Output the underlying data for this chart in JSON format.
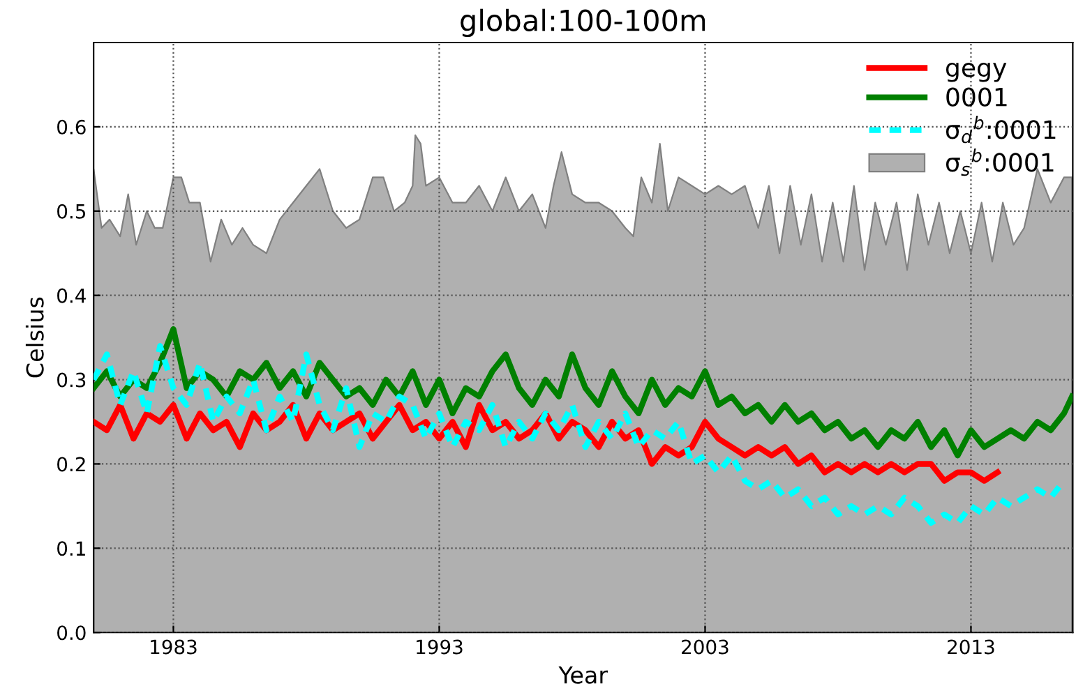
{
  "chart_data": {
    "type": "line",
    "title": "global:100-100m",
    "xlabel": "Year",
    "ylabel": "Celsius",
    "xlim": [
      1980,
      2016.83
    ],
    "xticks": [
      1983,
      1993,
      2003,
      2013
    ],
    "ylim": [
      0,
      0.7
    ],
    "yticks": [
      {
        "value": 0,
        "label": "0.0"
      },
      0.1,
      0.2,
      0.3,
      0.4,
      0.5,
      0.6
    ],
    "grid": true,
    "legend": "top right",
    "series": [
      {
        "name": "gegy",
        "color": "#ff0000",
        "line_style": "solid",
        "x": [
          1980,
          1980.5,
          1981,
          1981.5,
          1982,
          1982.5,
          1983,
          1983.5,
          1984,
          1984.5,
          1985,
          1985.5,
          1986,
          1986.5,
          1987,
          1987.5,
          1988,
          1988.5,
          1989,
          1989.5,
          1990,
          1990.5,
          1991,
          1991.5,
          1992,
          1992.5,
          1993,
          1993.5,
          1994,
          1994.5,
          1995,
          1995.5,
          1996,
          1996.5,
          1997,
          1997.5,
          1998,
          1998.5,
          1999,
          1999.5,
          2000,
          2000.5,
          2001,
          2001.5,
          2002,
          2002.5,
          2003,
          2003.5,
          2004,
          2004.5,
          2005,
          2005.5,
          2006,
          2006.5,
          2007,
          2007.5,
          2008,
          2008.5,
          2009,
          2009.5,
          2010,
          2010.5,
          2011,
          2011.5,
          2012,
          2012.5,
          2013,
          2013.5,
          2014
        ],
        "values": [
          0.25,
          0.24,
          0.27,
          0.23,
          0.26,
          0.25,
          0.27,
          0.23,
          0.26,
          0.24,
          0.25,
          0.22,
          0.26,
          0.24,
          0.25,
          0.27,
          0.23,
          0.26,
          0.24,
          0.25,
          0.26,
          0.23,
          0.25,
          0.27,
          0.24,
          0.25,
          0.23,
          0.25,
          0.22,
          0.27,
          0.24,
          0.25,
          0.23,
          0.24,
          0.26,
          0.23,
          0.25,
          0.24,
          0.22,
          0.25,
          0.23,
          0.24,
          0.2,
          0.22,
          0.21,
          0.22,
          0.25,
          0.23,
          0.22,
          0.21,
          0.22,
          0.21,
          0.22,
          0.2,
          0.21,
          0.19,
          0.2,
          0.19,
          0.2,
          0.19,
          0.2,
          0.19,
          0.2,
          0.2,
          0.18,
          0.19,
          0.19,
          0.18,
          0.19
        ]
      },
      {
        "name": "0001",
        "color": "#008000",
        "line_style": "solid",
        "x": [
          1980,
          1980.5,
          1981,
          1981.5,
          1982,
          1982.5,
          1983,
          1983.5,
          1984,
          1984.5,
          1985,
          1985.5,
          1986,
          1986.5,
          1987,
          1987.5,
          1988,
          1988.5,
          1989,
          1989.5,
          1990,
          1990.5,
          1991,
          1991.5,
          1992,
          1992.5,
          1993,
          1993.5,
          1994,
          1994.5,
          1995,
          1995.5,
          1996,
          1996.5,
          1997,
          1997.5,
          1998,
          1998.5,
          1999,
          1999.5,
          2000,
          2000.5,
          2001,
          2001.5,
          2002,
          2002.5,
          2003,
          2003.5,
          2004,
          2004.5,
          2005,
          2005.5,
          2006,
          2006.5,
          2007,
          2007.5,
          2008,
          2008.5,
          2009,
          2009.5,
          2010,
          2010.5,
          2011,
          2011.5,
          2012,
          2012.5,
          2013,
          2013.5,
          2014,
          2014.5,
          2015,
          2015.5,
          2016,
          2016.5,
          2016.8
        ],
        "values": [
          0.29,
          0.31,
          0.28,
          0.3,
          0.29,
          0.32,
          0.36,
          0.29,
          0.31,
          0.3,
          0.28,
          0.31,
          0.3,
          0.32,
          0.29,
          0.31,
          0.28,
          0.32,
          0.3,
          0.28,
          0.29,
          0.27,
          0.3,
          0.28,
          0.31,
          0.27,
          0.3,
          0.26,
          0.29,
          0.28,
          0.31,
          0.33,
          0.29,
          0.27,
          0.3,
          0.28,
          0.33,
          0.29,
          0.27,
          0.31,
          0.28,
          0.26,
          0.3,
          0.27,
          0.29,
          0.28,
          0.31,
          0.27,
          0.28,
          0.26,
          0.27,
          0.25,
          0.27,
          0.25,
          0.26,
          0.24,
          0.25,
          0.23,
          0.24,
          0.22,
          0.24,
          0.23,
          0.25,
          0.22,
          0.24,
          0.21,
          0.24,
          0.22,
          0.23,
          0.24,
          0.23,
          0.25,
          0.24,
          0.26,
          0.28
        ]
      },
      {
        "name": "σ$_{d}$$^{b}$:0001",
        "color": "#00ffff",
        "line_style": "dashed",
        "x": [
          1980,
          1980.5,
          1981,
          1981.5,
          1982,
          1982.5,
          1983,
          1983.5,
          1984,
          1984.5,
          1985,
          1985.5,
          1986,
          1986.5,
          1987,
          1987.5,
          1988,
          1988.5,
          1989,
          1989.5,
          1990,
          1990.5,
          1991,
          1991.5,
          1992,
          1992.5,
          1993,
          1993.5,
          1994,
          1994.5,
          1995,
          1995.5,
          1996,
          1996.5,
          1997,
          1997.5,
          1998,
          1998.5,
          1999,
          1999.5,
          2000,
          2000.5,
          2001,
          2001.5,
          2002,
          2002.5,
          2003,
          2003.5,
          2004,
          2004.5,
          2005,
          2005.5,
          2006,
          2006.5,
          2007,
          2007.5,
          2008,
          2008.5,
          2009,
          2009.5,
          2010,
          2010.5,
          2011,
          2011.5,
          2012,
          2012.5,
          2013,
          2013.5,
          2014,
          2014.5,
          2015,
          2015.5,
          2016,
          2016.5
        ],
        "values": [
          0.3,
          0.33,
          0.27,
          0.31,
          0.26,
          0.34,
          0.29,
          0.27,
          0.32,
          0.25,
          0.28,
          0.26,
          0.3,
          0.24,
          0.28,
          0.25,
          0.33,
          0.27,
          0.24,
          0.29,
          0.22,
          0.26,
          0.25,
          0.28,
          0.27,
          0.23,
          0.26,
          0.22,
          0.25,
          0.24,
          0.27,
          0.22,
          0.25,
          0.23,
          0.26,
          0.24,
          0.27,
          0.22,
          0.25,
          0.23,
          0.26,
          0.22,
          0.24,
          0.23,
          0.25,
          0.2,
          0.21,
          0.19,
          0.21,
          0.18,
          0.17,
          0.18,
          0.16,
          0.17,
          0.15,
          0.16,
          0.14,
          0.15,
          0.14,
          0.15,
          0.14,
          0.16,
          0.15,
          0.13,
          0.14,
          0.13,
          0.15,
          0.14,
          0.16,
          0.15,
          0.16,
          0.17,
          0.16,
          0.18
        ]
      },
      {
        "name": "σ$_{s}$$^{b}$:0001",
        "color": "#b0b0b0",
        "type": "area",
        "x": [
          1980,
          1980.3,
          1980.6,
          1981,
          1981.3,
          1981.6,
          1982,
          1982.3,
          1982.6,
          1983,
          1983.3,
          1983.6,
          1984,
          1984.4,
          1984.8,
          1985.2,
          1985.6,
          1986,
          1986.5,
          1987,
          1987.5,
          1988,
          1988.5,
          1989,
          1989.5,
          1990,
          1990.5,
          1990.9,
          1991.3,
          1991.7,
          1992,
          1992.1,
          1992.3,
          1992.5,
          1993,
          1993.5,
          1994,
          1994.5,
          1995,
          1995.5,
          1996,
          1996.5,
          1997,
          1997.3,
          1997.6,
          1998,
          1998.5,
          1999,
          1999.5,
          2000,
          2000.3,
          2000.6,
          2001,
          2001.3,
          2001.6,
          2002,
          2002.5,
          2003,
          2003.5,
          2004,
          2004.5,
          2005,
          2005.4,
          2005.8,
          2006.2,
          2006.6,
          2007,
          2007.4,
          2007.8,
          2008.2,
          2008.6,
          2009,
          2009.4,
          2009.8,
          2010.2,
          2010.6,
          2011,
          2011.4,
          2011.8,
          2012.2,
          2012.6,
          2013,
          2013.4,
          2013.8,
          2014.2,
          2014.6,
          2015,
          2015.5,
          2016,
          2016.5,
          2016.8
        ],
        "values": [
          0.55,
          0.48,
          0.49,
          0.47,
          0.52,
          0.46,
          0.5,
          0.48,
          0.48,
          0.54,
          0.54,
          0.51,
          0.51,
          0.44,
          0.49,
          0.46,
          0.48,
          0.46,
          0.45,
          0.49,
          0.51,
          0.53,
          0.55,
          0.5,
          0.48,
          0.49,
          0.54,
          0.54,
          0.5,
          0.51,
          0.53,
          0.59,
          0.58,
          0.53,
          0.54,
          0.51,
          0.51,
          0.53,
          0.5,
          0.54,
          0.5,
          0.52,
          0.48,
          0.53,
          0.57,
          0.52,
          0.51,
          0.51,
          0.5,
          0.48,
          0.47,
          0.54,
          0.51,
          0.58,
          0.5,
          0.54,
          0.53,
          0.52,
          0.53,
          0.52,
          0.53,
          0.48,
          0.53,
          0.45,
          0.53,
          0.46,
          0.52,
          0.44,
          0.51,
          0.44,
          0.53,
          0.43,
          0.51,
          0.46,
          0.51,
          0.43,
          0.52,
          0.46,
          0.51,
          0.45,
          0.5,
          0.45,
          0.51,
          0.44,
          0.51,
          0.46,
          0.48,
          0.55,
          0.51,
          0.54,
          0.54
        ]
      }
    ]
  }
}
